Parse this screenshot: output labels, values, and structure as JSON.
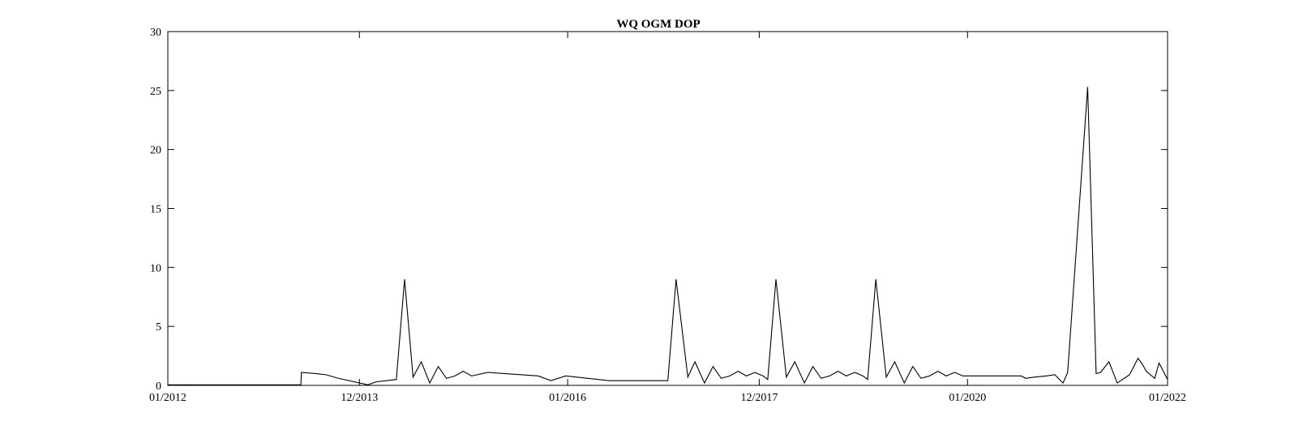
{
  "chart_data": {
    "type": "line",
    "title": "WQ OGM DOP",
    "xlabel": "",
    "ylabel": "",
    "x_tick_labels": [
      "01/2012",
      "12/2013",
      "01/2016",
      "12/2017",
      "01/2020",
      "01/2022"
    ],
    "x_tick_dates": [
      "2012-01-01",
      "2013-12-01",
      "2016-01-01",
      "2017-12-01",
      "2020-01-01",
      "2022-01-01"
    ],
    "y_tick_labels": [
      "0",
      "5",
      "10",
      "15",
      "20",
      "25",
      "30"
    ],
    "xlim": [
      "2012-01-01",
      "2022-01-01"
    ],
    "ylim": [
      0,
      30
    ],
    "grid": false,
    "series_color": "#000000",
    "series": [
      {
        "x": [
          "2012-01-01",
          "2013-05-01",
          "2013-05-03",
          "2013-06-25",
          "2013-08-01",
          "2013-09-15",
          "2014-01-01",
          "2014-01-31",
          "2014-03-10",
          "2014-04-15",
          "2014-05-15",
          "2014-06-15",
          "2014-07-15",
          "2014-08-15",
          "2014-09-15",
          "2014-10-15",
          "2014-11-15",
          "2014-12-15",
          "2015-01-15",
          "2015-03-15",
          "2015-09-15",
          "2015-11-01",
          "2015-12-25",
          "2016-06-01",
          "2016-12-15",
          "2017-01-01",
          "2017-01-31",
          "2017-03-15",
          "2017-04-10",
          "2017-05-15",
          "2017-06-15",
          "2017-07-15",
          "2017-08-15",
          "2017-09-15",
          "2017-10-15",
          "2017-11-15",
          "2017-12-15",
          "2018-01-01",
          "2018-01-31",
          "2018-03-10",
          "2018-04-10",
          "2018-05-15",
          "2018-06-15",
          "2018-07-15",
          "2018-08-15",
          "2018-09-15",
          "2018-10-15",
          "2018-11-15",
          "2018-12-15",
          "2019-01-01",
          "2019-01-31",
          "2019-03-10",
          "2019-04-10",
          "2019-05-15",
          "2019-06-15",
          "2019-07-15",
          "2019-08-15",
          "2019-09-15",
          "2019-10-15",
          "2019-11-15",
          "2019-12-15",
          "2020-01-15",
          "2020-07-15",
          "2020-08-01",
          "2020-09-01",
          "2020-10-15",
          "2020-11-15",
          "2020-12-15",
          "2021-01-01",
          "2021-03-15",
          "2021-04-15",
          "2021-05-01",
          "2021-06-01",
          "2021-07-01",
          "2021-08-15",
          "2021-09-15",
          "2021-10-01",
          "2021-10-15",
          "2021-11-15",
          "2021-12-01",
          "2022-01-01"
        ],
        "y": [
          0.05,
          0.05,
          1.1,
          1.0,
          0.9,
          0.6,
          0.05,
          0.3,
          0.4,
          0.5,
          9.0,
          0.7,
          2.0,
          0.2,
          1.6,
          0.6,
          0.8,
          1.2,
          0.8,
          1.1,
          0.8,
          0.4,
          0.8,
          0.4,
          0.4,
          0.4,
          9.0,
          0.7,
          2.0,
          0.2,
          1.6,
          0.6,
          0.8,
          1.2,
          0.8,
          1.1,
          0.8,
          0.5,
          9.0,
          0.7,
          2.0,
          0.2,
          1.6,
          0.6,
          0.8,
          1.2,
          0.8,
          1.1,
          0.8,
          0.5,
          9.0,
          0.7,
          2.0,
          0.2,
          1.6,
          0.6,
          0.8,
          1.2,
          0.8,
          1.1,
          0.8,
          0.8,
          0.8,
          0.6,
          0.7,
          0.8,
          0.9,
          0.2,
          1.1,
          25.3,
          1.0,
          1.1,
          2.0,
          0.2,
          0.9,
          2.3,
          1.8,
          1.2,
          0.6,
          1.9,
          0.5
        ]
      }
    ]
  }
}
